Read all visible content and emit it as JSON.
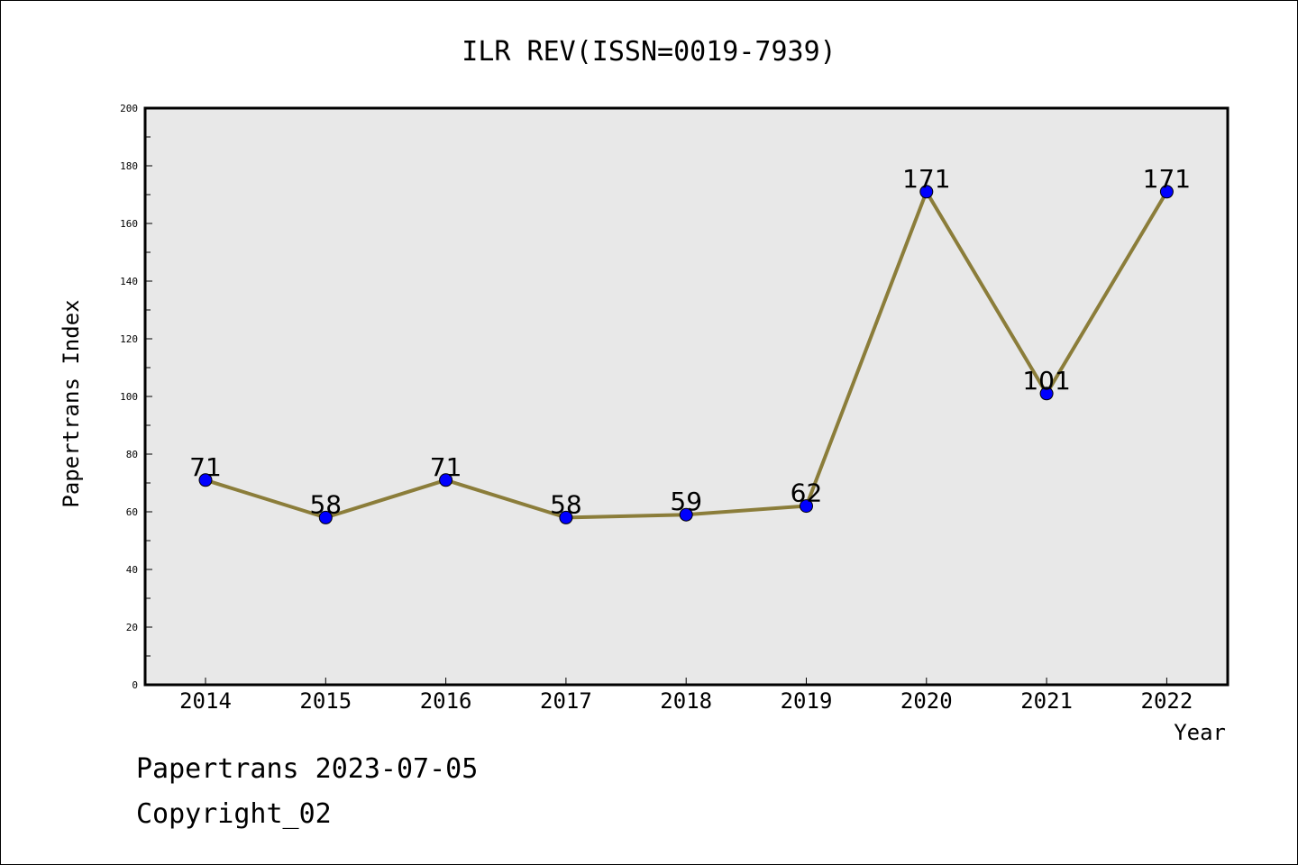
{
  "chart_data": {
    "type": "line",
    "title": "ILR REV(ISSN=0019-7939)",
    "xlabel": "Year",
    "ylabel": "Papertrans Index",
    "categories": [
      "2014",
      "2015",
      "2016",
      "2017",
      "2018",
      "2019",
      "2020",
      "2021",
      "2022"
    ],
    "series": [
      {
        "values": [
          71,
          58,
          71,
          58,
          59,
          62,
          171,
          101,
          171
        ]
      }
    ],
    "ylim": [
      0,
      200
    ],
    "yticks": [
      0,
      20,
      40,
      60,
      80,
      100,
      120,
      140,
      160,
      180,
      200
    ],
    "grid": false,
    "colors": {
      "line": "#8b7d3a",
      "marker": "#0000ff",
      "plot_background": "#e8e8e8"
    }
  },
  "footer": {
    "line1": "Papertrans 2023-07-05",
    "line2": "Copyright_02"
  }
}
